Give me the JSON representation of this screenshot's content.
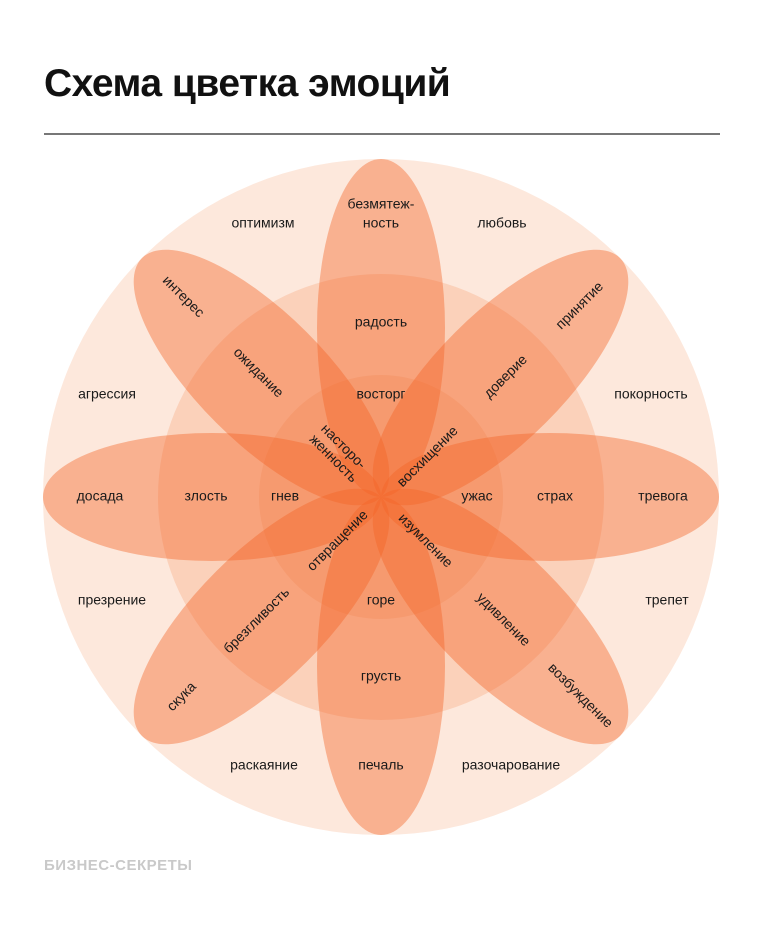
{
  "title": "Схема цветка эмоций",
  "logo": "БИЗНЕС-СЕКРЕТЫ",
  "colors": {
    "outer": "#fde8dc",
    "ring": "#f7a57a",
    "petal": "#f26326"
  },
  "labels": {
    "outer": [
      "оптимизм",
      "любовь",
      "покорность",
      "трепет",
      "разочарование",
      "раскаяние",
      "презрение",
      "агрессия"
    ],
    "petal_outer": [
      "безмятеж-",
      "ность",
      "принятие",
      "тревога",
      "возбуждение",
      "печаль",
      "скука",
      "досада",
      "интерес"
    ],
    "petal_mid": [
      "радость",
      "доверие",
      "страх",
      "удивление",
      "грусть",
      "брезгливость",
      "злость",
      "ожидание"
    ],
    "petal_inner": [
      "восторг",
      "ужас",
      "горе",
      "гнев"
    ],
    "center": [
      "насторо-",
      "женность",
      "восхищение",
      "изумление",
      "отвращение"
    ]
  }
}
